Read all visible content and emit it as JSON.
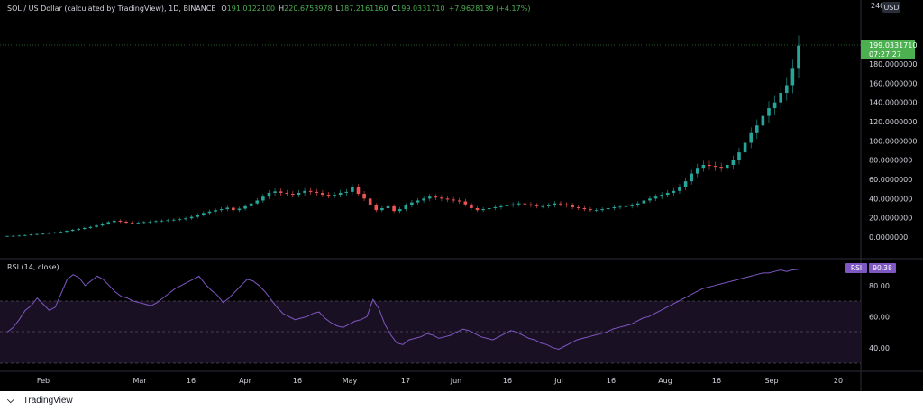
{
  "header": {
    "symbol_title": "SOL / US Dollar (calculated by TradingView), 1D, BINANCE",
    "ohlc": [
      {
        "key": "O",
        "value": "191.0122100"
      },
      {
        "key": "H",
        "value": "220.6753978"
      },
      {
        "key": "L",
        "value": "187.2161160"
      },
      {
        "key": "C",
        "value": "199.0331710"
      }
    ],
    "change": "+7.9628139 (+4.17%)"
  },
  "currency_badge": "USD",
  "price_axis": {
    "top_label": "240",
    "tick_labels": [
      "180.0000000",
      "160.0000000",
      "140.0000000",
      "120.0000000",
      "100.0000000",
      "80.0000000",
      "60.0000000",
      "40.0000000",
      "20.0000000",
      "0.0000000"
    ]
  },
  "last_price": {
    "value": "199.0331710",
    "countdown": "07:27:27"
  },
  "rsi": {
    "title": "RSI (14, close)",
    "badge_label": "RSI",
    "badge_value": "90.38",
    "tick_labels": [
      "80.00",
      "60.00",
      "40.00"
    ]
  },
  "time_axis": {
    "labels": [
      "Feb",
      "Mar",
      "16",
      "Apr",
      "16",
      "May",
      "17",
      "Jun",
      "16",
      "Jul",
      "16",
      "Aug",
      "16",
      "Sep",
      "20"
    ]
  },
  "footer": {
    "brand": "TradingView"
  },
  "colors": {
    "background": "#000000",
    "up": "#26a69a",
    "down": "#ef5350",
    "header_green": "#4caf50",
    "rsi_line": "#7e57c2",
    "rsi_band": "#1a1024",
    "price_label_bg": "#4caf50",
    "rsi_badge_bg": "#7e57c2"
  },
  "chart_data": [
    {
      "type": "candlestick",
      "title": "SOL / US Dollar (calculated by TradingView), 1D, BINANCE",
      "xlabel": "",
      "ylabel": "",
      "ylim": [
        -10,
        240
      ],
      "x_ticks": [
        "Feb",
        "Mar",
        "16",
        "Apr",
        "16",
        "May",
        "17",
        "Jun",
        "16",
        "Jul",
        "16",
        "Aug",
        "16",
        "Sep",
        "20"
      ],
      "close_series": [
        1.0,
        1.2,
        1.5,
        2.0,
        2.6,
        3.0,
        3.5,
        4.2,
        4.8,
        5.5,
        6.5,
        7.5,
        8.5,
        9.5,
        10.5,
        12.0,
        14.0,
        15.5,
        17.0,
        16.0,
        15.0,
        14.5,
        15.0,
        15.5,
        16.0,
        16.5,
        17.0,
        17.5,
        18.0,
        18.5,
        19.5,
        21.0,
        23.0,
        25.0,
        26.5,
        28.0,
        29.0,
        30.5,
        28.0,
        29.5,
        32.0,
        35.0,
        38.0,
        42.0,
        46.0,
        47.5,
        46.0,
        45.0,
        44.0,
        46.0,
        48.0,
        47.0,
        46.0,
        44.0,
        43.0,
        44.0,
        46.0,
        47.0,
        52.0,
        45.0,
        40.0,
        33.0,
        28.0,
        30.0,
        32.0,
        27.0,
        29.0,
        33.0,
        36.0,
        38.0,
        40.0,
        42.0,
        41.0,
        40.0,
        39.0,
        38.0,
        37.0,
        34.0,
        30.0,
        28.0,
        29.0,
        30.0,
        31.0,
        32.0,
        33.0,
        34.0,
        35.0,
        34.0,
        33.0,
        32.0,
        32.0,
        33.0,
        35.0,
        34.0,
        33.0,
        31.0,
        30.0,
        29.0,
        28.0,
        28.0,
        29.0,
        30.0,
        31.0,
        31.5,
        32.0,
        33.0,
        35.0,
        38.0,
        40.0,
        42.0,
        44.0,
        46.0,
        48.0,
        52.0,
        58.0,
        66.0,
        72.0,
        75.0,
        74.0,
        73.0,
        72.0,
        75.0,
        80.0,
        88.0,
        98.0,
        108.0,
        116.0,
        126.0,
        134.0,
        140.0,
        150.0,
        158.0,
        175.0,
        199.0
      ],
      "series": [
        {
          "name": "RSI (14, close)",
          "values": [
            50,
            53,
            58,
            64,
            67,
            72,
            68,
            64,
            66,
            75,
            84,
            87,
            85,
            80,
            83,
            86,
            84,
            80,
            76,
            73,
            72,
            70,
            69,
            68,
            67,
            69,
            72,
            75,
            78,
            80,
            82,
            84,
            86,
            81,
            77,
            74,
            69,
            72,
            76,
            80,
            84,
            83,
            80,
            76,
            71,
            66,
            62,
            60,
            58,
            59,
            60,
            62,
            63,
            59,
            56,
            54,
            53,
            55,
            57,
            58,
            60,
            71,
            65,
            55,
            48,
            43,
            42,
            45,
            46,
            47,
            49,
            48,
            46,
            47,
            48,
            50,
            52,
            51,
            49,
            47,
            46,
            45,
            47,
            49,
            51,
            50,
            48,
            46,
            45,
            43,
            42,
            40,
            39,
            41,
            43,
            45,
            46,
            47,
            48,
            49,
            50,
            52,
            53,
            54,
            55,
            57,
            59,
            60,
            62,
            64,
            66,
            68,
            70,
            72,
            74,
            76,
            78,
            79,
            80,
            81,
            82,
            83,
            84,
            85,
            86,
            87,
            88,
            88,
            89,
            90,
            89,
            90,
            90.38
          ]
        }
      ]
    }
  ]
}
